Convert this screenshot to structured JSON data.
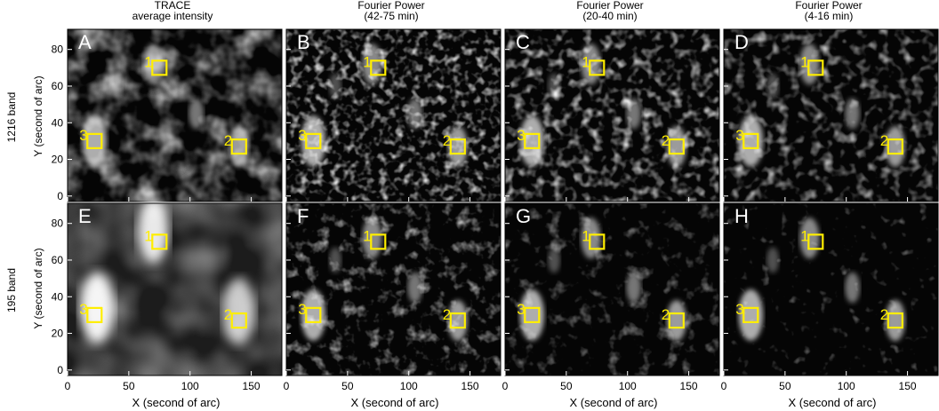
{
  "figure": {
    "titles": [
      {
        "line1": "TRACE",
        "line2": "average intensity"
      },
      {
        "line1": "Fourier Power",
        "line2": "(42-75 min)"
      },
      {
        "line1": "Fourier Power",
        "line2": "(20-40 min)"
      },
      {
        "line1": "Fourier Power",
        "line2": "(4-16 min)"
      }
    ],
    "row_labels": [
      "1216 band",
      "195 band"
    ],
    "y_axis_label": "Y (second of arc)",
    "x_axis_label": "X (second of arc)",
    "x_ticks": [
      0,
      50,
      100,
      150
    ],
    "y_ticks": [
      0,
      20,
      40,
      60,
      80
    ],
    "x_range": [
      0,
      175
    ],
    "y_range": [
      -3,
      91
    ],
    "panel_letters": [
      [
        "A",
        "B",
        "C",
        "D"
      ],
      [
        "E",
        "F",
        "G",
        "H"
      ]
    ],
    "region_box_color": "#ffee00",
    "regions": [
      {
        "label": "1",
        "x": 75,
        "y": 70
      },
      {
        "label": "2",
        "x": 140,
        "y": 27
      },
      {
        "label": "3",
        "x": 22,
        "y": 30
      }
    ]
  }
}
